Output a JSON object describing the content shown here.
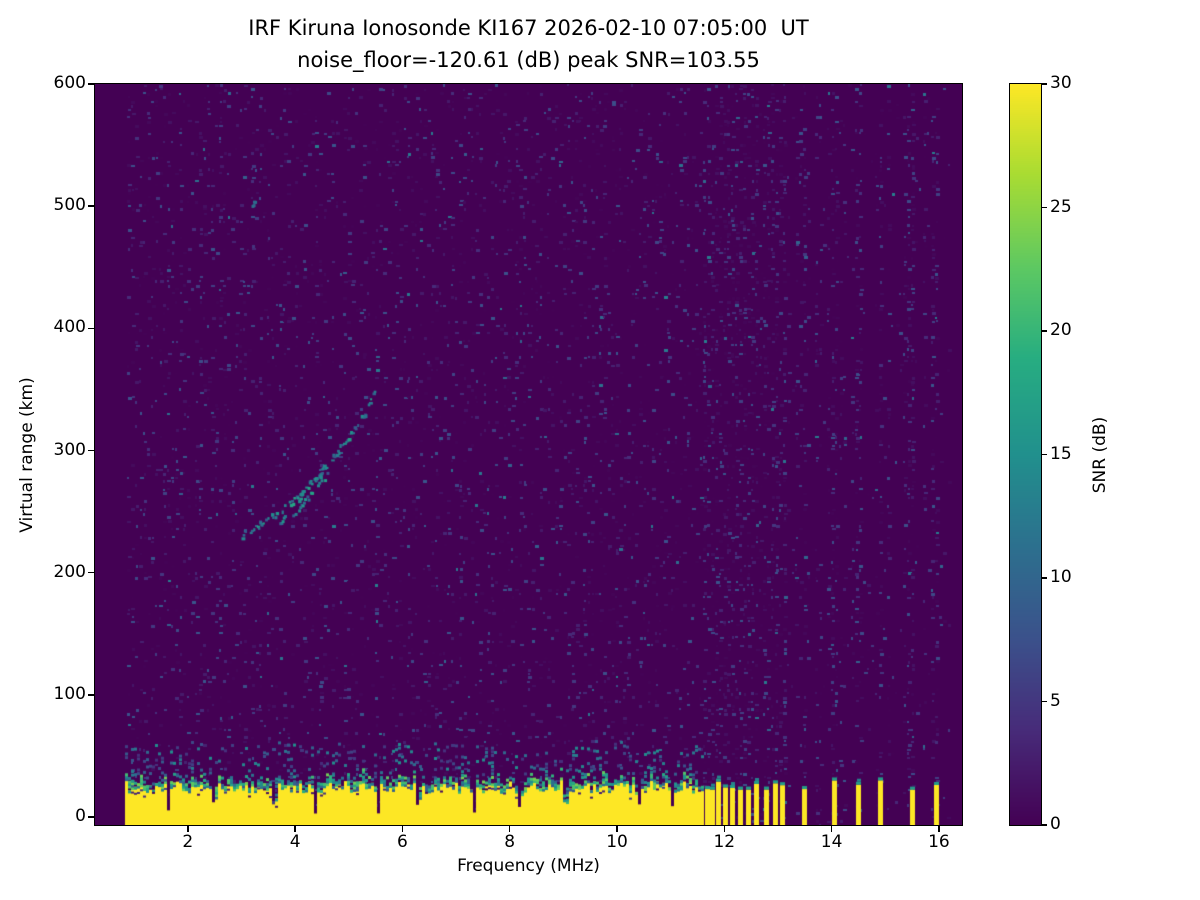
{
  "chart_data": {
    "type": "heatmap",
    "title": "IRF Kiruna Ionosonde KI167 2026-02-10 07:05:00  UT",
    "subtitle": "noise_floor=-120.61 (dB) peak SNR=103.55",
    "xlabel": "Frequency (MHz)",
    "ylabel": "Virtual range (km)",
    "xlim": [
      0.27,
      16.43
    ],
    "ylim": [
      -6.5,
      600
    ],
    "x_ticks": [
      2,
      4,
      6,
      8,
      10,
      12,
      14,
      16
    ],
    "y_ticks": [
      0,
      100,
      200,
      300,
      400,
      500,
      600
    ],
    "grid": false,
    "colorbar": {
      "label": "SNR (dB)",
      "min": 0,
      "max": 30,
      "ticks": [
        0,
        5,
        10,
        15,
        20,
        25,
        30
      ],
      "colormap": "viridis"
    },
    "background_snr": 0,
    "data_freq_range_mhz": [
      0.85,
      16.25
    ],
    "ground_band": {
      "freq_start": 0.85,
      "freq_end": 11.62,
      "base_height_km": 26,
      "height_jitter_km": 9,
      "top_transition_km": 11,
      "snr": 30,
      "notches_mhz": [
        1.65,
        2.5,
        3.62,
        4.38,
        5.55,
        6.3,
        7.35,
        8.2,
        9.05,
        10.4,
        11.05
      ]
    },
    "rf_stripes_mhz": [
      11.68,
      11.78,
      11.9,
      12.02,
      12.16,
      12.3,
      12.45,
      12.6,
      12.78,
      12.95,
      13.08,
      13.5,
      14.05,
      14.5,
      14.92,
      15.5,
      15.95
    ],
    "rf_stripe_height_km": [
      22,
      32
    ],
    "echo_trace": {
      "points": [
        [
          3.0,
          232
        ],
        [
          3.5,
          245
        ],
        [
          4.0,
          260
        ],
        [
          4.5,
          285
        ],
        [
          5.0,
          312
        ],
        [
          5.3,
          332
        ],
        [
          5.5,
          350
        ]
      ],
      "snr_range": [
        8,
        18
      ]
    },
    "faint_spot": [
      3.2,
      500
    ],
    "noise": {
      "speckle_probability": 0.14,
      "max_snr": 13,
      "striped_region_start_mhz": 11.62
    },
    "seed": 167
  }
}
